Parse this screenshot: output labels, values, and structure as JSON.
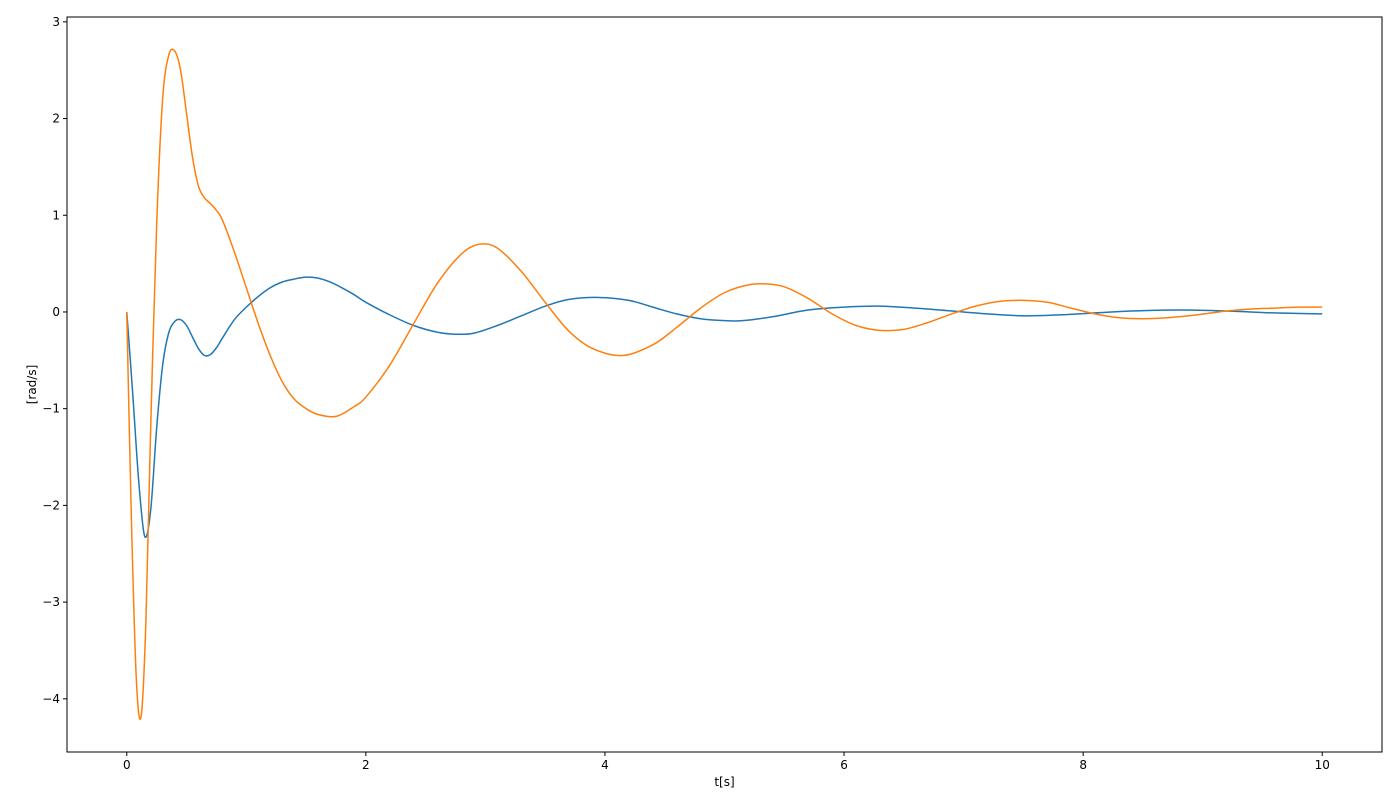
{
  "chart_data": {
    "type": "line",
    "title": "",
    "xlabel": "t[s]",
    "ylabel": "[rad/s]",
    "xlim": [
      -0.5,
      10.5
    ],
    "ylim": [
      -4.55,
      3.05
    ],
    "xticks": [
      0,
      2,
      4,
      6,
      8,
      10
    ],
    "yticks": [
      -4,
      -3,
      -2,
      -1,
      0,
      1,
      2,
      3
    ],
    "xtick_labels": [
      "0",
      "2",
      "4",
      "6",
      "8",
      "10"
    ],
    "ytick_labels": [
      "−4",
      "−3",
      "−2",
      "−1",
      "0",
      "1",
      "2",
      "3"
    ],
    "grid": false,
    "legend": "none",
    "series": [
      {
        "color": "#1f77b4",
        "x": [
          0,
          0.05,
          0.1,
          0.15,
          0.2,
          0.25,
          0.3,
          0.35,
          0.4,
          0.45,
          0.5,
          0.55,
          0.6,
          0.65,
          0.7,
          0.75,
          0.8,
          0.9,
          1.0,
          1.1,
          1.2,
          1.3,
          1.4,
          1.5,
          1.6,
          1.7,
          1.8,
          1.9,
          2.0,
          2.2,
          2.4,
          2.6,
          2.75,
          2.9,
          3.1,
          3.3,
          3.5,
          3.7,
          3.95,
          4.2,
          4.4,
          4.6,
          4.8,
          5.0,
          5.15,
          5.4,
          5.7,
          6.0,
          6.3,
          6.6,
          6.9,
          7.2,
          7.5,
          7.8,
          8.1,
          8.4,
          8.8,
          9.2,
          9.6,
          10.0
        ],
        "y": [
          0.0,
          -0.85,
          -1.75,
          -2.32,
          -2.05,
          -1.2,
          -0.55,
          -0.22,
          -0.1,
          -0.08,
          -0.14,
          -0.26,
          -0.38,
          -0.45,
          -0.44,
          -0.37,
          -0.27,
          -0.08,
          0.05,
          0.16,
          0.25,
          0.31,
          0.34,
          0.36,
          0.35,
          0.31,
          0.25,
          0.18,
          0.1,
          -0.03,
          -0.14,
          -0.21,
          -0.23,
          -0.22,
          -0.14,
          -0.04,
          0.06,
          0.13,
          0.15,
          0.12,
          0.05,
          -0.02,
          -0.07,
          -0.09,
          -0.09,
          -0.05,
          0.02,
          0.05,
          0.06,
          0.04,
          0.01,
          -0.02,
          -0.04,
          -0.03,
          -0.01,
          0.01,
          0.02,
          0.01,
          -0.01,
          -0.02
        ]
      },
      {
        "color": "#ff7f0e",
        "x": [
          0,
          0.04,
          0.08,
          0.12,
          0.16,
          0.2,
          0.25,
          0.3,
          0.35,
          0.4,
          0.45,
          0.5,
          0.55,
          0.6,
          0.65,
          0.7,
          0.75,
          0.8,
          0.9,
          1.0,
          1.1,
          1.2,
          1.3,
          1.4,
          1.5,
          1.6,
          1.75,
          1.9,
          2.0,
          2.2,
          2.4,
          2.6,
          2.8,
          2.95,
          3.1,
          3.3,
          3.5,
          3.7,
          3.9,
          4.15,
          4.4,
          4.6,
          4.8,
          5.0,
          5.2,
          5.35,
          5.5,
          5.7,
          5.9,
          6.1,
          6.3,
          6.5,
          6.7,
          6.9,
          7.1,
          7.3,
          7.5,
          7.7,
          7.9,
          8.1,
          8.3,
          8.5,
          8.7,
          8.95,
          9.2,
          9.4,
          9.6,
          9.8,
          10.0
        ],
        "y": [
          0.0,
          -2.2,
          -3.8,
          -4.18,
          -3.2,
          -1.2,
          0.9,
          2.2,
          2.65,
          2.7,
          2.5,
          2.05,
          1.6,
          1.3,
          1.18,
          1.12,
          1.05,
          0.95,
          0.62,
          0.25,
          -0.12,
          -0.45,
          -0.72,
          -0.9,
          -1.0,
          -1.06,
          -1.08,
          -0.98,
          -0.88,
          -0.55,
          -0.12,
          0.3,
          0.6,
          0.7,
          0.66,
          0.42,
          0.1,
          -0.2,
          -0.38,
          -0.45,
          -0.34,
          -0.16,
          0.04,
          0.2,
          0.28,
          0.29,
          0.26,
          0.14,
          -0.02,
          -0.14,
          -0.19,
          -0.18,
          -0.11,
          -0.02,
          0.06,
          0.11,
          0.12,
          0.1,
          0.04,
          -0.02,
          -0.06,
          -0.07,
          -0.06,
          -0.03,
          0.01,
          0.03,
          0.04,
          0.05,
          0.05
        ]
      }
    ]
  }
}
